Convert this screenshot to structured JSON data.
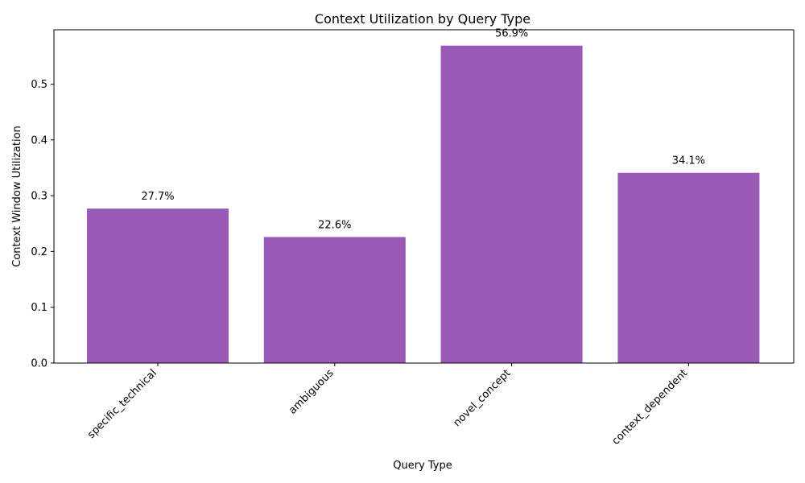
{
  "chart_data": {
    "type": "bar",
    "title": "Context Utilization by Query Type",
    "xlabel": "Query Type",
    "ylabel": "Context Window Utilization",
    "categories": [
      "specific_technical",
      "ambiguous",
      "novel_concept",
      "context_dependent"
    ],
    "values": [
      0.277,
      0.226,
      0.569,
      0.341
    ],
    "data_labels": [
      "27.7%",
      "22.6%",
      "56.9%",
      "34.1%"
    ],
    "ylim": [
      0,
      0.5975
    ],
    "yticks": [
      0.0,
      0.1,
      0.2,
      0.3,
      0.4,
      0.5
    ],
    "ytick_labels": [
      "0.0",
      "0.1",
      "0.2",
      "0.3",
      "0.4",
      "0.5"
    ],
    "bar_color": "#9b59b6",
    "grid": false,
    "legend": "none"
  }
}
